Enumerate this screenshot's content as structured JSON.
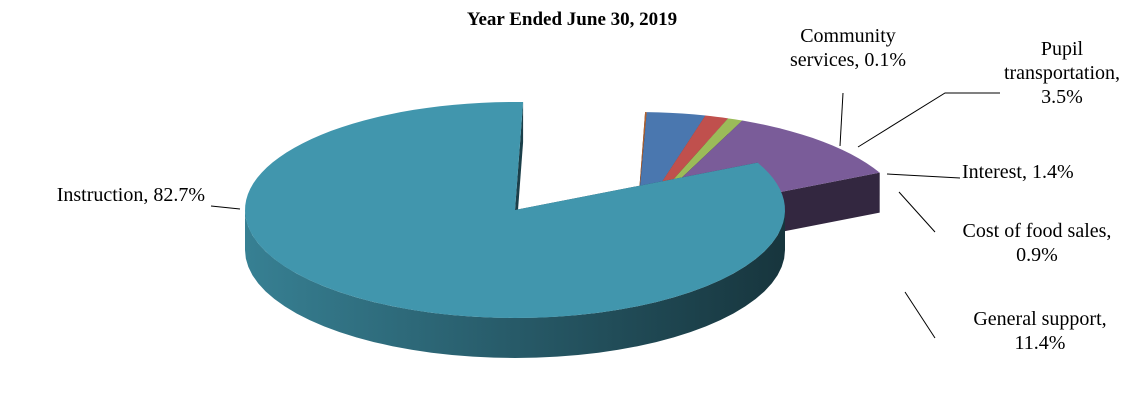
{
  "chart_data": {
    "type": "pie",
    "title": "Year Ended June 30, 2019",
    "unit": "%",
    "slices": [
      {
        "label": "Instruction",
        "value": 82.7,
        "color": "#4196AD",
        "label_lines": [
          "Instruction, 82.7%"
        ]
      },
      {
        "label": "Community services",
        "value": 0.1,
        "color": "#B0602E",
        "label_lines": [
          "Community",
          "services, 0.1%"
        ]
      },
      {
        "label": "Pupil transportation",
        "value": 3.5,
        "color": "#4A77AF",
        "label_lines": [
          "Pupil",
          "transportation,",
          "3.5%"
        ]
      },
      {
        "label": "Interest",
        "value": 1.4,
        "color": "#C0504D",
        "label_lines": [
          "Interest, 1.4%"
        ]
      },
      {
        "label": "Cost of food sales",
        "value": 0.9,
        "color": "#9BBB59",
        "label_lines": [
          "Cost of food sales,",
          "0.9%"
        ]
      },
      {
        "label": "General support",
        "value": 11.4,
        "color": "#7A5C99",
        "label_lines": [
          "General support,",
          "11.4%"
        ]
      }
    ],
    "exploded": [
      "Community services",
      "Pupil transportation",
      "Interest",
      "Cost of food sales",
      "General support"
    ],
    "style": "3d-pie",
    "legend": "none"
  }
}
